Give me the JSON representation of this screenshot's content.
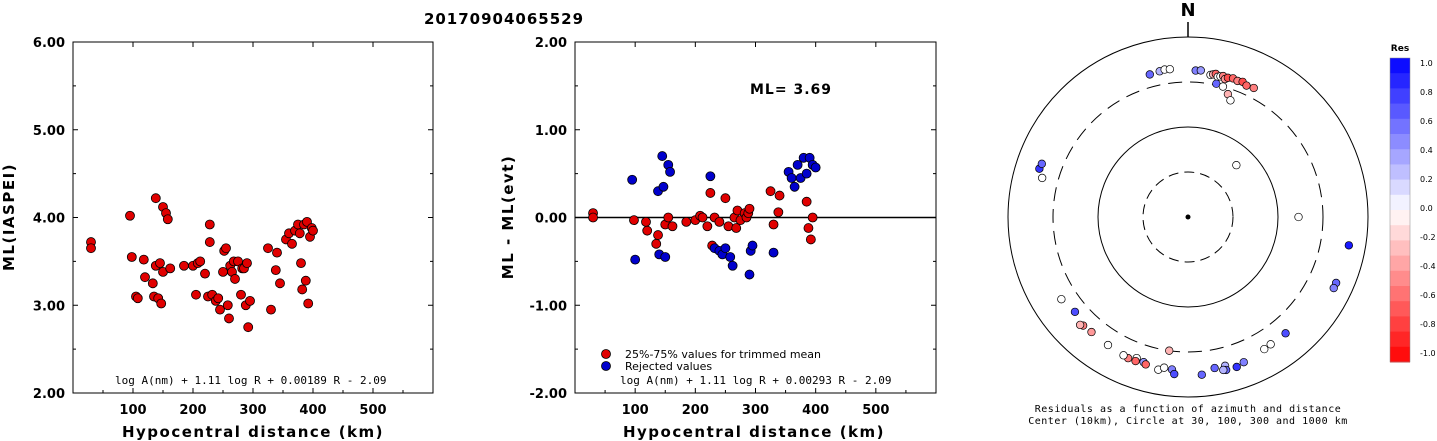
{
  "figure_title": "20170904065529",
  "chart_data": [
    {
      "type": "scatter",
      "ylabel": "ML(IASPEI)",
      "xlabel": "Hypocentral distance (km)",
      "xlim": [
        0,
        600
      ],
      "ylim": [
        2.0,
        6.0
      ],
      "xticks": [
        "100",
        "200",
        "300",
        "400",
        "500"
      ],
      "xtick_values": [
        100,
        200,
        300,
        400,
        500
      ],
      "yticks": [
        "2.00",
        "3.00",
        "4.00",
        "5.00",
        "6.00"
      ],
      "ytick_values": [
        2,
        3,
        4,
        5,
        6
      ],
      "formula": "log A(nm) + 1.11 log R + 0.00189 R - 2.09",
      "marker_color": "#e00000",
      "points": [
        [
          30,
          3.72
        ],
        [
          30,
          3.65
        ],
        [
          95,
          4.02
        ],
        [
          98,
          3.55
        ],
        [
          105,
          3.1
        ],
        [
          108,
          3.08
        ],
        [
          118,
          3.52
        ],
        [
          120,
          3.32
        ],
        [
          133,
          3.25
        ],
        [
          135,
          3.1
        ],
        [
          138,
          3.45
        ],
        [
          138,
          4.22
        ],
        [
          142,
          3.08
        ],
        [
          145,
          3.48
        ],
        [
          147,
          3.02
        ],
        [
          150,
          4.12
        ],
        [
          150,
          3.38
        ],
        [
          155,
          4.05
        ],
        [
          158,
          3.98
        ],
        [
          162,
          3.42
        ],
        [
          185,
          3.45
        ],
        [
          200,
          3.45
        ],
        [
          205,
          3.12
        ],
        [
          208,
          3.48
        ],
        [
          212,
          3.5
        ],
        [
          220,
          3.36
        ],
        [
          225,
          3.1
        ],
        [
          228,
          3.92
        ],
        [
          228,
          3.72
        ],
        [
          232,
          3.12
        ],
        [
          238,
          3.05
        ],
        [
          242,
          3.08
        ],
        [
          245,
          2.95
        ],
        [
          250,
          3.38
        ],
        [
          252,
          3.62
        ],
        [
          255,
          3.65
        ],
        [
          258,
          3.0
        ],
        [
          260,
          2.85
        ],
        [
          262,
          3.45
        ],
        [
          265,
          3.38
        ],
        [
          268,
          3.5
        ],
        [
          270,
          3.3
        ],
        [
          275,
          3.5
        ],
        [
          280,
          3.12
        ],
        [
          282,
          3.42
        ],
        [
          285,
          3.42
        ],
        [
          288,
          3.0
        ],
        [
          290,
          3.48
        ],
        [
          292,
          2.75
        ],
        [
          295,
          3.05
        ],
        [
          325,
          3.65
        ],
        [
          330,
          2.95
        ],
        [
          338,
          3.4
        ],
        [
          340,
          3.6
        ],
        [
          345,
          3.25
        ],
        [
          355,
          3.75
        ],
        [
          360,
          3.82
        ],
        [
          365,
          3.7
        ],
        [
          370,
          3.85
        ],
        [
          375,
          3.92
        ],
        [
          378,
          3.82
        ],
        [
          380,
          3.48
        ],
        [
          382,
          3.18
        ],
        [
          385,
          3.92
        ],
        [
          388,
          3.28
        ],
        [
          390,
          3.95
        ],
        [
          392,
          3.02
        ],
        [
          395,
          3.78
        ],
        [
          398,
          3.88
        ],
        [
          400,
          3.85
        ]
      ]
    },
    {
      "type": "scatter",
      "ylabel": "ML - ML(evt)",
      "xlabel": "Hypocentral distance (km)",
      "xlim": [
        0,
        600
      ],
      "ylim": [
        -2.0,
        2.0
      ],
      "xticks": [
        "100",
        "200",
        "300",
        "400",
        "500"
      ],
      "xtick_values": [
        100,
        200,
        300,
        400,
        500
      ],
      "yticks": [
        "-2.00",
        "-1.00",
        "0.00",
        "1.00",
        "2.00"
      ],
      "ytick_values": [
        -2,
        -1,
        0,
        1,
        2
      ],
      "annotation": "ML= 3.69",
      "reference_line": 0,
      "formula": "log A(nm) + 1.11 log R + 0.00293 R - 2.09",
      "legend": [
        {
          "label": "25%-75% values for trimmed mean",
          "color": "#e00000"
        },
        {
          "label": "Rejected values",
          "color": "#0000cc"
        }
      ],
      "series": [
        {
          "name": "25%-75% values for trimmed mean",
          "color": "#e00000",
          "points": [
            [
              30,
              0.05
            ],
            [
              30,
              0.0
            ],
            [
              98,
              -0.03
            ],
            [
              118,
              -0.05
            ],
            [
              120,
              -0.15
            ],
            [
              135,
              -0.3
            ],
            [
              138,
              -0.2
            ],
            [
              150,
              -0.08
            ],
            [
              155,
              0.0
            ],
            [
              162,
              -0.1
            ],
            [
              185,
              -0.05
            ],
            [
              200,
              -0.03
            ],
            [
              208,
              0.02
            ],
            [
              212,
              0.0
            ],
            [
              220,
              -0.1
            ],
            [
              225,
              0.28
            ],
            [
              228,
              -0.32
            ],
            [
              232,
              0.0
            ],
            [
              240,
              -0.05
            ],
            [
              250,
              0.22
            ],
            [
              255,
              -0.1
            ],
            [
              265,
              0.0
            ],
            [
              268,
              -0.12
            ],
            [
              270,
              0.08
            ],
            [
              275,
              -0.03
            ],
            [
              282,
              0.05
            ],
            [
              285,
              0.0
            ],
            [
              288,
              0.05
            ],
            [
              290,
              0.1
            ],
            [
              325,
              0.3
            ],
            [
              330,
              -0.08
            ],
            [
              338,
              0.06
            ],
            [
              340,
              0.25
            ],
            [
              385,
              0.18
            ],
            [
              388,
              -0.12
            ],
            [
              392,
              -0.25
            ],
            [
              395,
              0.0
            ]
          ]
        },
        {
          "name": "Rejected values",
          "color": "#0000cc",
          "points": [
            [
              95,
              0.43
            ],
            [
              100,
              -0.48
            ],
            [
              138,
              0.3
            ],
            [
              140,
              -0.42
            ],
            [
              145,
              0.7
            ],
            [
              147,
              0.35
            ],
            [
              150,
              -0.45
            ],
            [
              155,
              0.6
            ],
            [
              158,
              0.52
            ],
            [
              225,
              0.47
            ],
            [
              232,
              -0.35
            ],
            [
              240,
              -0.38
            ],
            [
              245,
              -0.42
            ],
            [
              250,
              -0.35
            ],
            [
              258,
              -0.45
            ],
            [
              262,
              -0.55
            ],
            [
              290,
              -0.65
            ],
            [
              292,
              -0.38
            ],
            [
              295,
              -0.32
            ],
            [
              330,
              -0.4
            ],
            [
              355,
              0.52
            ],
            [
              360,
              0.45
            ],
            [
              365,
              0.35
            ],
            [
              370,
              0.6
            ],
            [
              375,
              0.45
            ],
            [
              380,
              0.68
            ],
            [
              385,
              0.5
            ],
            [
              390,
              0.68
            ],
            [
              395,
              0.6
            ],
            [
              400,
              0.57
            ]
          ]
        }
      ]
    },
    {
      "type": "polar_scatter",
      "north_label": "N",
      "caption_line1": "Residuals as a function of azimuth and distance",
      "caption_line2": "Center (10km), Circle at 30, 100, 300 and 1000 km",
      "rings_km": [
        30,
        100,
        300,
        1000
      ],
      "colorbar_title": "Res",
      "colorbar_labels": [
        "1.0",
        "0.8",
        "0.6",
        "0.4",
        "0.2",
        "0.0",
        "-0.2",
        "-0.4",
        "-0.6",
        "-0.8",
        "-1.0"
      ],
      "stations": [
        {
          "az": 345,
          "dist": 420,
          "res": 0.6
        },
        {
          "az": 349,
          "dist": 430,
          "res": 0.3
        },
        {
          "az": 351,
          "dist": 440,
          "res": 0.0
        },
        {
          "az": 353,
          "dist": 435,
          "res": 0.0
        },
        {
          "az": 3,
          "dist": 410,
          "res": 0.5
        },
        {
          "az": 5,
          "dist": 415,
          "res": 0.4
        },
        {
          "az": 9,
          "dist": 380,
          "res": 0.0
        },
        {
          "az": 10,
          "dist": 390,
          "res": -0.3
        },
        {
          "az": 11,
          "dist": 400,
          "res": -0.6
        },
        {
          "az": 12,
          "dist": 375,
          "res": 0.0
        },
        {
          "az": 13,
          "dist": 385,
          "res": 0.0
        },
        {
          "az": 14,
          "dist": 395,
          "res": -0.5
        },
        {
          "az": 15,
          "dist": 370,
          "res": -0.4
        },
        {
          "az": 16,
          "dist": 390,
          "res": -0.7
        },
        {
          "az": 18,
          "dist": 400,
          "res": -0.6
        },
        {
          "az": 20,
          "dist": 390,
          "res": -0.5
        },
        {
          "az": 22,
          "dist": 400,
          "res": -0.7
        },
        {
          "az": 24,
          "dist": 380,
          "res": -0.6
        },
        {
          "az": 27,
          "dist": 390,
          "res": -0.5
        },
        {
          "az": 12,
          "dist": 310,
          "res": 0.6
        },
        {
          "az": 15,
          "dist": 300,
          "res": 0.0
        },
        {
          "az": 18,
          "dist": 260,
          "res": -0.3
        },
        {
          "az": 20,
          "dist": 230,
          "res": 0.0
        },
        {
          "az": 43,
          "dist": 60,
          "res": 0.0
        },
        {
          "az": 288,
          "dist": 530,
          "res": 0.8
        },
        {
          "az": 290,
          "dist": 520,
          "res": 0.6
        },
        {
          "az": 285,
          "dist": 460,
          "res": 0.0
        },
        {
          "az": 90,
          "dist": 165,
          "res": 0.0
        },
        {
          "az": 100,
          "dist": 640,
          "res": 0.9
        },
        {
          "az": 114,
          "dist": 620,
          "res": 0.6
        },
        {
          "az": 116,
          "dist": 620,
          "res": 0.5
        },
        {
          "az": 188,
          "dist": 300,
          "res": -0.3
        },
        {
          "az": 230,
          "dist": 420,
          "res": 0.7
        },
        {
          "az": 237,
          "dist": 460,
          "res": 0.0
        },
        {
          "az": 212,
          "dist": 460,
          "res": 0.0
        },
        {
          "az": 220,
          "dist": 450,
          "res": -0.4
        },
        {
          "az": 224,
          "dist": 460,
          "res": -0.5
        },
        {
          "az": 225,
          "dist": 480,
          "res": -0.3
        },
        {
          "az": 200,
          "dist": 450,
          "res": 0.0
        },
        {
          "az": 197,
          "dist": 470,
          "res": 0.4
        },
        {
          "az": 191,
          "dist": 520,
          "res": 0.0
        },
        {
          "az": 189,
          "dist": 480,
          "res": 0.0
        },
        {
          "az": 186,
          "dist": 490,
          "res": 0.5
        },
        {
          "az": 196,
          "dist": 490,
          "res": -0.6
        },
        {
          "az": 200,
          "dist": 490,
          "res": -0.6
        },
        {
          "az": 203,
          "dist": 490,
          "res": -0.5
        },
        {
          "az": 205,
          "dist": 480,
          "res": 0.0
        },
        {
          "az": 170,
          "dist": 490,
          "res": 0.6
        },
        {
          "az": 166,
          "dist": 490,
          "res": 0.3
        },
        {
          "az": 166,
          "dist": 550,
          "res": 0.6
        },
        {
          "az": 162,
          "dist": 550,
          "res": 0.8
        },
        {
          "az": 159,
          "dist": 520,
          "res": 0.5
        },
        {
          "az": 150,
          "dist": 480,
          "res": 0.0
        },
        {
          "az": 147,
          "dist": 470,
          "res": 0.0
        },
        {
          "az": 140,
          "dist": 470,
          "res": 0.7
        },
        {
          "az": 167,
          "dist": 540,
          "res": 0.3
        },
        {
          "az": 175,
          "dist": 560,
          "res": 0.6
        },
        {
          "az": 185,
          "dist": 550,
          "res": 0.7
        }
      ]
    }
  ]
}
